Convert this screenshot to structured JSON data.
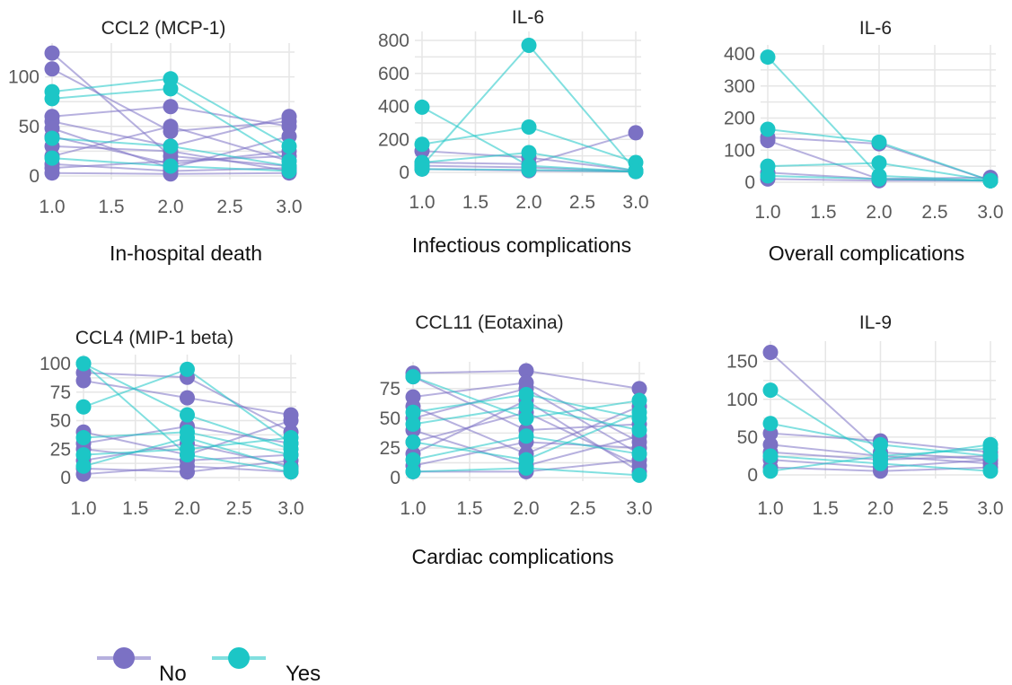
{
  "colors": {
    "No": "#7b71c4",
    "Yes": "#1cc6c6",
    "grid": "#e6e6e6",
    "tick_text": "#5a5a5a"
  },
  "legend": {
    "items": [
      {
        "key": "No",
        "label": "No"
      },
      {
        "key": "Yes",
        "label": "Yes"
      }
    ]
  },
  "chart_data": [
    {
      "type": "line",
      "title": "CCL2 (MCP-1)",
      "xlabel": "In-hospital death",
      "ylabel": "",
      "x": [
        1.0,
        2.0,
        3.0
      ],
      "xlim": [
        1.0,
        3.0
      ],
      "ylim": [
        0,
        125
      ],
      "xticks": [
        "1.0",
        "1.5",
        "2.0",
        "2.5",
        "3.0"
      ],
      "yticks": [
        0,
        50,
        100
      ],
      "grid": true,
      "series": [
        {
          "name": "No",
          "values": [
            124,
            20,
            10
          ]
        },
        {
          "name": "No",
          "values": [
            108,
            45,
            55
          ]
        },
        {
          "name": "No",
          "values": [
            60,
            70,
            50
          ]
        },
        {
          "name": "No",
          "values": [
            55,
            30,
            60
          ]
        },
        {
          "name": "No",
          "values": [
            48,
            8,
            40
          ]
        },
        {
          "name": "No",
          "values": [
            40,
            12,
            25
          ]
        },
        {
          "name": "No",
          "values": [
            30,
            25,
            5
          ]
        },
        {
          "name": "No",
          "values": [
            20,
            50,
            15
          ]
        },
        {
          "name": "No",
          "values": [
            12,
            5,
            8
          ]
        },
        {
          "name": "No",
          "values": [
            8,
            15,
            20
          ]
        },
        {
          "name": "No",
          "values": [
            3,
            2,
            3
          ]
        },
        {
          "name": "Yes",
          "values": [
            85,
            98,
            30
          ]
        },
        {
          "name": "Yes",
          "values": [
            78,
            88,
            15
          ]
        },
        {
          "name": "Yes",
          "values": [
            38,
            30,
            10
          ]
        },
        {
          "name": "Yes",
          "values": [
            18,
            10,
            5
          ]
        }
      ]
    },
    {
      "type": "line",
      "title": "IL-6",
      "xlabel": "Infectious complications",
      "ylabel": "",
      "x": [
        1.0,
        2.0,
        3.0
      ],
      "xlim": [
        1.0,
        3.0
      ],
      "ylim": [
        0,
        800
      ],
      "xticks": [
        "1.0",
        "1.5",
        "2.0",
        "2.5",
        "3.0"
      ],
      "yticks": [
        0,
        200,
        400,
        600,
        800
      ],
      "grid": true,
      "series": [
        {
          "name": "No",
          "values": [
            130,
            90,
            10
          ]
        },
        {
          "name": "No",
          "values": [
            60,
            50,
            240
          ]
        },
        {
          "name": "No",
          "values": [
            40,
            30,
            5
          ]
        },
        {
          "name": "No",
          "values": [
            20,
            10,
            5
          ]
        },
        {
          "name": "Yes",
          "values": [
            40,
            770,
            10
          ]
        },
        {
          "name": "Yes",
          "values": [
            395,
            40,
            5
          ]
        },
        {
          "name": "Yes",
          "values": [
            170,
            275,
            60
          ]
        },
        {
          "name": "Yes",
          "values": [
            60,
            120,
            10
          ]
        },
        {
          "name": "Yes",
          "values": [
            20,
            15,
            5
          ]
        }
      ]
    },
    {
      "type": "line",
      "title": "IL-6",
      "xlabel": "Overall complications",
      "ylabel": "",
      "x": [
        1.0,
        2.0,
        3.0
      ],
      "xlim": [
        1.0,
        3.0
      ],
      "ylim": [
        0,
        400
      ],
      "xticks": [
        "1.0",
        "1.5",
        "2.0",
        "2.5",
        "3.0"
      ],
      "yticks": [
        0,
        100,
        200,
        300,
        400
      ],
      "grid": true,
      "series": [
        {
          "name": "No",
          "values": [
            140,
            120,
            5
          ]
        },
        {
          "name": "No",
          "values": [
            130,
            10,
            5
          ]
        },
        {
          "name": "No",
          "values": [
            30,
            10,
            15
          ]
        },
        {
          "name": "No",
          "values": [
            10,
            5,
            5
          ]
        },
        {
          "name": "Yes",
          "values": [
            390,
            20,
            5
          ]
        },
        {
          "name": "Yes",
          "values": [
            165,
            125,
            5
          ]
        },
        {
          "name": "Yes",
          "values": [
            50,
            60,
            5
          ]
        },
        {
          "name": "Yes",
          "values": [
            20,
            10,
            5
          ]
        }
      ]
    },
    {
      "type": "line",
      "title": "CCL4 (MIP-1 beta)",
      "xlabel": "",
      "ylabel": "",
      "x": [
        1.0,
        2.0,
        3.0
      ],
      "xlim": [
        1.0,
        3.0
      ],
      "ylim": [
        0,
        100
      ],
      "xticks": [
        "1.0",
        "1.5",
        "2.0",
        "2.5",
        "3.0"
      ],
      "yticks": [
        0,
        25,
        50,
        75,
        100
      ],
      "grid": true,
      "series": [
        {
          "name": "No",
          "values": [
            92,
            88,
            40
          ]
        },
        {
          "name": "No",
          "values": [
            85,
            70,
            55
          ]
        },
        {
          "name": "No",
          "values": [
            40,
            20,
            50
          ]
        },
        {
          "name": "No",
          "values": [
            30,
            45,
            30
          ]
        },
        {
          "name": "No",
          "values": [
            25,
            15,
            20
          ]
        },
        {
          "name": "No",
          "values": [
            15,
            30,
            10
          ]
        },
        {
          "name": "No",
          "values": [
            8,
            5,
            15
          ]
        },
        {
          "name": "No",
          "values": [
            3,
            10,
            5
          ]
        },
        {
          "name": "Yes",
          "values": [
            100,
            55,
            25
          ]
        },
        {
          "name": "Yes",
          "values": [
            100,
            20,
            5
          ]
        },
        {
          "name": "Yes",
          "values": [
            62,
            95,
            30
          ]
        },
        {
          "name": "Yes",
          "values": [
            35,
            40,
            20
          ]
        },
        {
          "name": "Yes",
          "values": [
            20,
            25,
            35
          ]
        },
        {
          "name": "Yes",
          "values": [
            10,
            35,
            8
          ]
        }
      ]
    },
    {
      "type": "line",
      "title": "CCL11 (Eotaxina)",
      "xlabel": "Cardiac complications",
      "ylabel": "",
      "x": [
        1.0,
        2.0,
        3.0
      ],
      "xlim": [
        1.0,
        3.0
      ],
      "ylim": [
        0,
        90
      ],
      "xticks": [
        "1.0",
        "1.5",
        "2.0",
        "2.5",
        "3.0"
      ],
      "yticks": [
        0,
        25,
        50,
        75
      ],
      "grid": true,
      "series": [
        {
          "name": "No",
          "values": [
            88,
            90,
            75
          ]
        },
        {
          "name": "No",
          "values": [
            85,
            40,
            45
          ]
        },
        {
          "name": "No",
          "values": [
            68,
            80,
            30
          ]
        },
        {
          "name": "No",
          "values": [
            60,
            20,
            60
          ]
        },
        {
          "name": "No",
          "values": [
            50,
            75,
            20
          ]
        },
        {
          "name": "No",
          "values": [
            40,
            10,
            35
          ]
        },
        {
          "name": "No",
          "values": [
            30,
            55,
            10
          ]
        },
        {
          "name": "No",
          "values": [
            20,
            65,
            5
          ]
        },
        {
          "name": "No",
          "values": [
            10,
            30,
            25
          ]
        },
        {
          "name": "No",
          "values": [
            5,
            5,
            15
          ]
        },
        {
          "name": "Yes",
          "values": [
            85,
            50,
            65
          ]
        },
        {
          "name": "Yes",
          "values": [
            55,
            70,
            50
          ]
        },
        {
          "name": "Yes",
          "values": [
            45,
            60,
            40
          ]
        },
        {
          "name": "Yes",
          "values": [
            30,
            15,
            55
          ]
        },
        {
          "name": "Yes",
          "values": [
            15,
            35,
            20
          ]
        },
        {
          "name": "Yes",
          "values": [
            5,
            8,
            2
          ]
        }
      ]
    },
    {
      "type": "line",
      "title": "IL-9",
      "xlabel": "",
      "ylabel": "",
      "x": [
        1.0,
        2.0,
        3.0
      ],
      "xlim": [
        1.0,
        3.0
      ],
      "ylim": [
        0,
        165
      ],
      "xticks": [
        "1.0",
        "1.5",
        "2.0",
        "2.5",
        "3.0"
      ],
      "yticks": [
        0,
        50,
        100,
        150
      ],
      "grid": true,
      "series": [
        {
          "name": "No",
          "values": [
            162,
            30,
            20
          ]
        },
        {
          "name": "No",
          "values": [
            55,
            45,
            30
          ]
        },
        {
          "name": "No",
          "values": [
            40,
            25,
            15
          ]
        },
        {
          "name": "No",
          "values": [
            30,
            20,
            25
          ]
        },
        {
          "name": "No",
          "values": [
            20,
            10,
            20
          ]
        },
        {
          "name": "No",
          "values": [
            10,
            5,
            10
          ]
        },
        {
          "name": "Yes",
          "values": [
            112,
            20,
            40
          ]
        },
        {
          "name": "Yes",
          "values": [
            68,
            40,
            25
          ]
        },
        {
          "name": "Yes",
          "values": [
            25,
            15,
            5
          ]
        },
        {
          "name": "Yes",
          "values": [
            5,
            25,
            35
          ]
        }
      ]
    }
  ]
}
